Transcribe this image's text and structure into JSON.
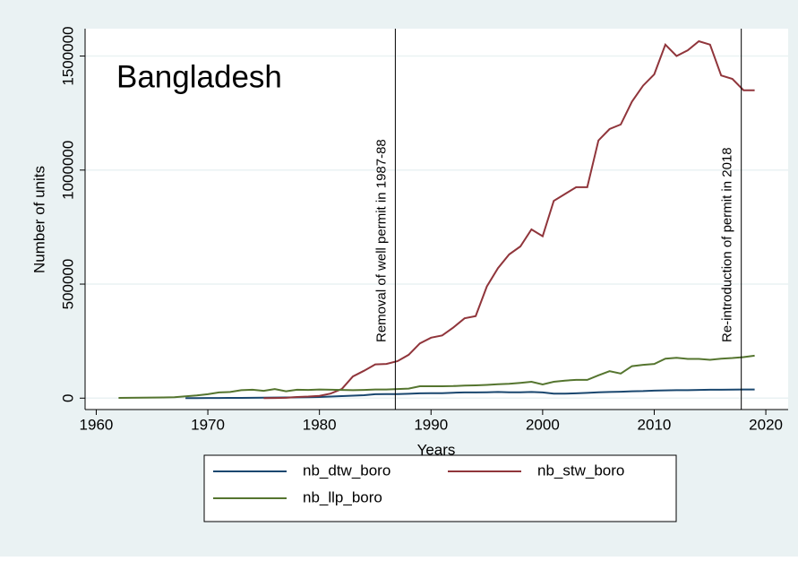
{
  "chart_data": {
    "type": "line",
    "annotation": "Bangladesh",
    "x_label": "Years",
    "y_label": "Number of units",
    "x": [
      1962,
      1963,
      1964,
      1965,
      1966,
      1967,
      1968,
      1969,
      1970,
      1971,
      1972,
      1973,
      1974,
      1975,
      1976,
      1977,
      1978,
      1979,
      1980,
      1981,
      1982,
      1983,
      1984,
      1985,
      1986,
      1987,
      1988,
      1989,
      1990,
      1991,
      1992,
      1993,
      1994,
      1995,
      1996,
      1997,
      1998,
      1999,
      2000,
      2001,
      2002,
      2003,
      2004,
      2005,
      2006,
      2007,
      2008,
      2009,
      2010,
      2011,
      2012,
      2013,
      2014,
      2015,
      2016,
      2017,
      2018,
      2019
    ],
    "series": [
      {
        "name": "nb_dtw_boro",
        "color": "#1a476f",
        "values": [
          null,
          null,
          null,
          null,
          null,
          null,
          0,
          200,
          500,
          800,
          1000,
          1200,
          1500,
          2000,
          2500,
          3000,
          3500,
          4000,
          5000,
          7000,
          9000,
          11000,
          13000,
          17000,
          17500,
          18000,
          19000,
          21000,
          22000,
          22000,
          24000,
          25000,
          25000,
          26000,
          27000,
          26000,
          26000,
          27000,
          25000,
          20000,
          20000,
          21000,
          23000,
          26000,
          27000,
          28000,
          30000,
          31000,
          33000,
          34000,
          35000,
          35000,
          36000,
          37000,
          37000,
          37500,
          38000,
          38000
        ]
      },
      {
        "name": "nb_stw_boro",
        "color": "#90353b",
        "values": [
          null,
          null,
          null,
          null,
          null,
          null,
          null,
          null,
          null,
          null,
          null,
          null,
          null,
          0,
          500,
          1500,
          5000,
          7000,
          10000,
          20000,
          40000,
          95000,
          120000,
          148000,
          150000,
          162000,
          190000,
          240000,
          265000,
          275000,
          310000,
          350000,
          360000,
          490000,
          570000,
          630000,
          665000,
          740000,
          710000,
          865000,
          895000,
          925000,
          925000,
          1130000,
          1180000,
          1200000,
          1300000,
          1370000,
          1420000,
          1550000,
          1500000,
          1525000,
          1565000,
          1550000,
          1415000,
          1400000,
          1350000,
          1350000
        ]
      },
      {
        "name": "nb_llp_boro",
        "color": "#55752f",
        "values": [
          1000,
          1500,
          2000,
          2500,
          3000,
          4000,
          8000,
          12000,
          17000,
          25000,
          27000,
          35000,
          37000,
          32000,
          40000,
          30000,
          37000,
          36000,
          38000,
          37000,
          36000,
          35000,
          36000,
          38000,
          38000,
          40000,
          42000,
          52000,
          52000,
          52000,
          53000,
          55000,
          56000,
          58000,
          61000,
          63000,
          67000,
          72000,
          60000,
          72000,
          77000,
          80000,
          80000,
          100000,
          118000,
          108000,
          140000,
          146000,
          150000,
          173000,
          177000,
          172000,
          172000,
          168000,
          173000,
          176000,
          180000,
          186000
        ]
      }
    ],
    "vlines": [
      {
        "x": 1986.8,
        "label": "Removal of well permit in 1987-88"
      },
      {
        "x": 2017.8,
        "label": "Re-introduction of permit in 2018"
      }
    ],
    "xlim": [
      1959,
      2022
    ],
    "ylim": [
      -50000,
      1620000
    ],
    "xticks": [
      1960,
      1970,
      1980,
      1990,
      2000,
      2010,
      2020
    ],
    "yticks": [
      0,
      500000,
      1000000,
      1500000
    ],
    "grid": true
  }
}
